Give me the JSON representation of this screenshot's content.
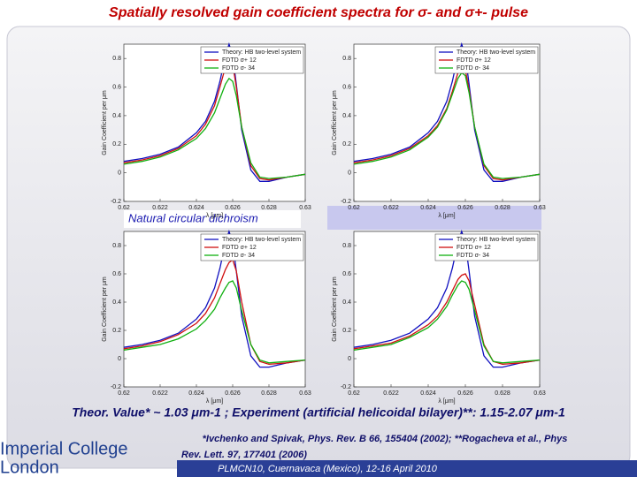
{
  "slide": {
    "title": "Spatially resolved gain coefficient spectra for σ- and σ+- pulse",
    "annotation": "Natural circular dichroism",
    "summary": "Theor. Value* ~ 1.03 μm-1 ; Experiment (artificial helicoidal bilayer)**: 1.15-2.07 μm-1",
    "reference": [
      "*Ivchenko and Spivak, Phys. Rev. B 66, 155404 (2002); **Rogacheva et al., Phys",
      "Rev. Lett. 97, 177401 (2006)"
    ],
    "footer": "PLMCN10, Cuernavaca (Mexico), 12-16 April 2010",
    "logo": [
      "Imperial College",
      "London"
    ]
  },
  "chart_data": [
    {
      "type": "line",
      "xlabel": "λ [μm]",
      "ylabel": "Gain Coefficient per μm",
      "xlim": [
        0.62,
        0.63
      ],
      "ylim": [
        -0.2,
        0.9
      ],
      "xticks": [
        0.62,
        0.622,
        0.624,
        0.626,
        0.628,
        0.63
      ],
      "yticks": [
        -0.2,
        0,
        0.2,
        0.4,
        0.6,
        0.8
      ],
      "x": [
        0.62,
        0.621,
        0.622,
        0.623,
        0.624,
        0.6245,
        0.625,
        0.6253,
        0.6256,
        0.6258,
        0.626,
        0.6262,
        0.6265,
        0.627,
        0.6275,
        0.628,
        0.629,
        0.63
      ],
      "series": [
        {
          "name": "Theory: HB two-level system",
          "color": "#1010c0",
          "values": [
            0.08,
            0.1,
            0.13,
            0.18,
            0.28,
            0.36,
            0.5,
            0.64,
            0.82,
            0.9,
            0.82,
            0.62,
            0.3,
            0.02,
            -0.06,
            -0.06,
            -0.03,
            -0.01
          ]
        },
        {
          "name": "FDTD σ+ 12",
          "color": "#d01010",
          "values": [
            0.07,
            0.09,
            0.12,
            0.17,
            0.26,
            0.34,
            0.47,
            0.6,
            0.74,
            0.8,
            0.76,
            0.6,
            0.32,
            0.05,
            -0.04,
            -0.05,
            -0.03,
            -0.01
          ]
        },
        {
          "name": "FDTD σ- 34",
          "color": "#10b010",
          "values": [
            0.06,
            0.08,
            0.11,
            0.16,
            0.24,
            0.31,
            0.42,
            0.52,
            0.62,
            0.66,
            0.64,
            0.54,
            0.32,
            0.07,
            -0.03,
            -0.04,
            -0.03,
            -0.01
          ]
        }
      ]
    },
    {
      "type": "line",
      "xlabel": "λ [μm]",
      "ylabel": "Gain Coefficient per μm",
      "xlim": [
        0.62,
        0.63
      ],
      "ylim": [
        -0.2,
        0.9
      ],
      "xticks": [
        0.62,
        0.622,
        0.624,
        0.626,
        0.628,
        0.63
      ],
      "yticks": [
        -0.2,
        0,
        0.2,
        0.4,
        0.6,
        0.8
      ],
      "x": [
        0.62,
        0.621,
        0.622,
        0.623,
        0.624,
        0.6245,
        0.625,
        0.6253,
        0.6256,
        0.6258,
        0.626,
        0.6262,
        0.6265,
        0.627,
        0.6275,
        0.628,
        0.629,
        0.63
      ],
      "series": [
        {
          "name": "Theory: HB two-level system",
          "color": "#1010c0",
          "values": [
            0.08,
            0.1,
            0.13,
            0.18,
            0.28,
            0.36,
            0.5,
            0.64,
            0.82,
            0.9,
            0.82,
            0.62,
            0.3,
            0.02,
            -0.06,
            -0.06,
            -0.03,
            -0.01
          ]
        },
        {
          "name": "FDTD σ+ 12",
          "color": "#d01010",
          "values": [
            0.07,
            0.09,
            0.12,
            0.17,
            0.26,
            0.33,
            0.45,
            0.57,
            0.7,
            0.75,
            0.72,
            0.58,
            0.32,
            0.05,
            -0.04,
            -0.05,
            -0.03,
            -0.01
          ]
        },
        {
          "name": "FDTD σ- 34",
          "color": "#10b010",
          "values": [
            0.06,
            0.08,
            0.11,
            0.16,
            0.25,
            0.32,
            0.44,
            0.55,
            0.66,
            0.7,
            0.68,
            0.56,
            0.32,
            0.06,
            -0.03,
            -0.04,
            -0.03,
            -0.01
          ]
        }
      ]
    },
    {
      "type": "line",
      "xlabel": "λ [μm]",
      "ylabel": "Gain Coefficient per μm",
      "xlim": [
        0.62,
        0.63
      ],
      "ylim": [
        -0.2,
        0.9
      ],
      "xticks": [
        0.62,
        0.622,
        0.624,
        0.626,
        0.628,
        0.63
      ],
      "yticks": [
        -0.2,
        0,
        0.2,
        0.4,
        0.6,
        0.8
      ],
      "x": [
        0.62,
        0.621,
        0.622,
        0.623,
        0.624,
        0.6245,
        0.625,
        0.6253,
        0.6256,
        0.6258,
        0.626,
        0.6262,
        0.6265,
        0.627,
        0.6275,
        0.628,
        0.629,
        0.63
      ],
      "series": [
        {
          "name": "Theory: HB two-level system",
          "color": "#1010c0",
          "values": [
            0.08,
            0.1,
            0.13,
            0.18,
            0.28,
            0.36,
            0.5,
            0.64,
            0.82,
            0.9,
            0.82,
            0.62,
            0.3,
            0.02,
            -0.06,
            -0.06,
            -0.03,
            -0.01
          ]
        },
        {
          "name": "FDTD σ+ 12",
          "color": "#d01010",
          "values": [
            0.07,
            0.09,
            0.12,
            0.17,
            0.25,
            0.32,
            0.43,
            0.53,
            0.63,
            0.68,
            0.7,
            0.62,
            0.4,
            0.1,
            -0.02,
            -0.04,
            -0.03,
            -0.01
          ]
        },
        {
          "name": "FDTD σ- 34",
          "color": "#10b010",
          "values": [
            0.06,
            0.08,
            0.1,
            0.14,
            0.21,
            0.27,
            0.35,
            0.43,
            0.5,
            0.54,
            0.55,
            0.5,
            0.34,
            0.1,
            -0.01,
            -0.03,
            -0.02,
            -0.01
          ]
        }
      ]
    },
    {
      "type": "line",
      "xlabel": "λ [μm]",
      "ylabel": "Gain Coefficient per μm",
      "xlim": [
        0.62,
        0.63
      ],
      "ylim": [
        -0.2,
        0.9
      ],
      "xticks": [
        0.62,
        0.622,
        0.624,
        0.626,
        0.628,
        0.63
      ],
      "yticks": [
        -0.2,
        0,
        0.2,
        0.4,
        0.6,
        0.8
      ],
      "x": [
        0.62,
        0.621,
        0.622,
        0.623,
        0.624,
        0.6245,
        0.625,
        0.6253,
        0.6256,
        0.6258,
        0.626,
        0.6262,
        0.6265,
        0.627,
        0.6275,
        0.628,
        0.629,
        0.63
      ],
      "series": [
        {
          "name": "Theory: HB two-level system",
          "color": "#1010c0",
          "values": [
            0.08,
            0.1,
            0.13,
            0.18,
            0.28,
            0.36,
            0.5,
            0.64,
            0.82,
            0.9,
            0.82,
            0.62,
            0.3,
            0.02,
            -0.06,
            -0.06,
            -0.03,
            -0.01
          ]
        },
        {
          "name": "FDTD σ+ 12",
          "color": "#d01010",
          "values": [
            0.07,
            0.09,
            0.11,
            0.16,
            0.24,
            0.3,
            0.4,
            0.48,
            0.56,
            0.59,
            0.6,
            0.55,
            0.38,
            0.1,
            -0.02,
            -0.04,
            -0.03,
            -0.01
          ]
        },
        {
          "name": "FDTD σ- 34",
          "color": "#10b010",
          "values": [
            0.06,
            0.08,
            0.1,
            0.15,
            0.22,
            0.28,
            0.37,
            0.45,
            0.52,
            0.55,
            0.54,
            0.49,
            0.34,
            0.09,
            -0.02,
            -0.03,
            -0.02,
            -0.01
          ]
        }
      ]
    }
  ]
}
